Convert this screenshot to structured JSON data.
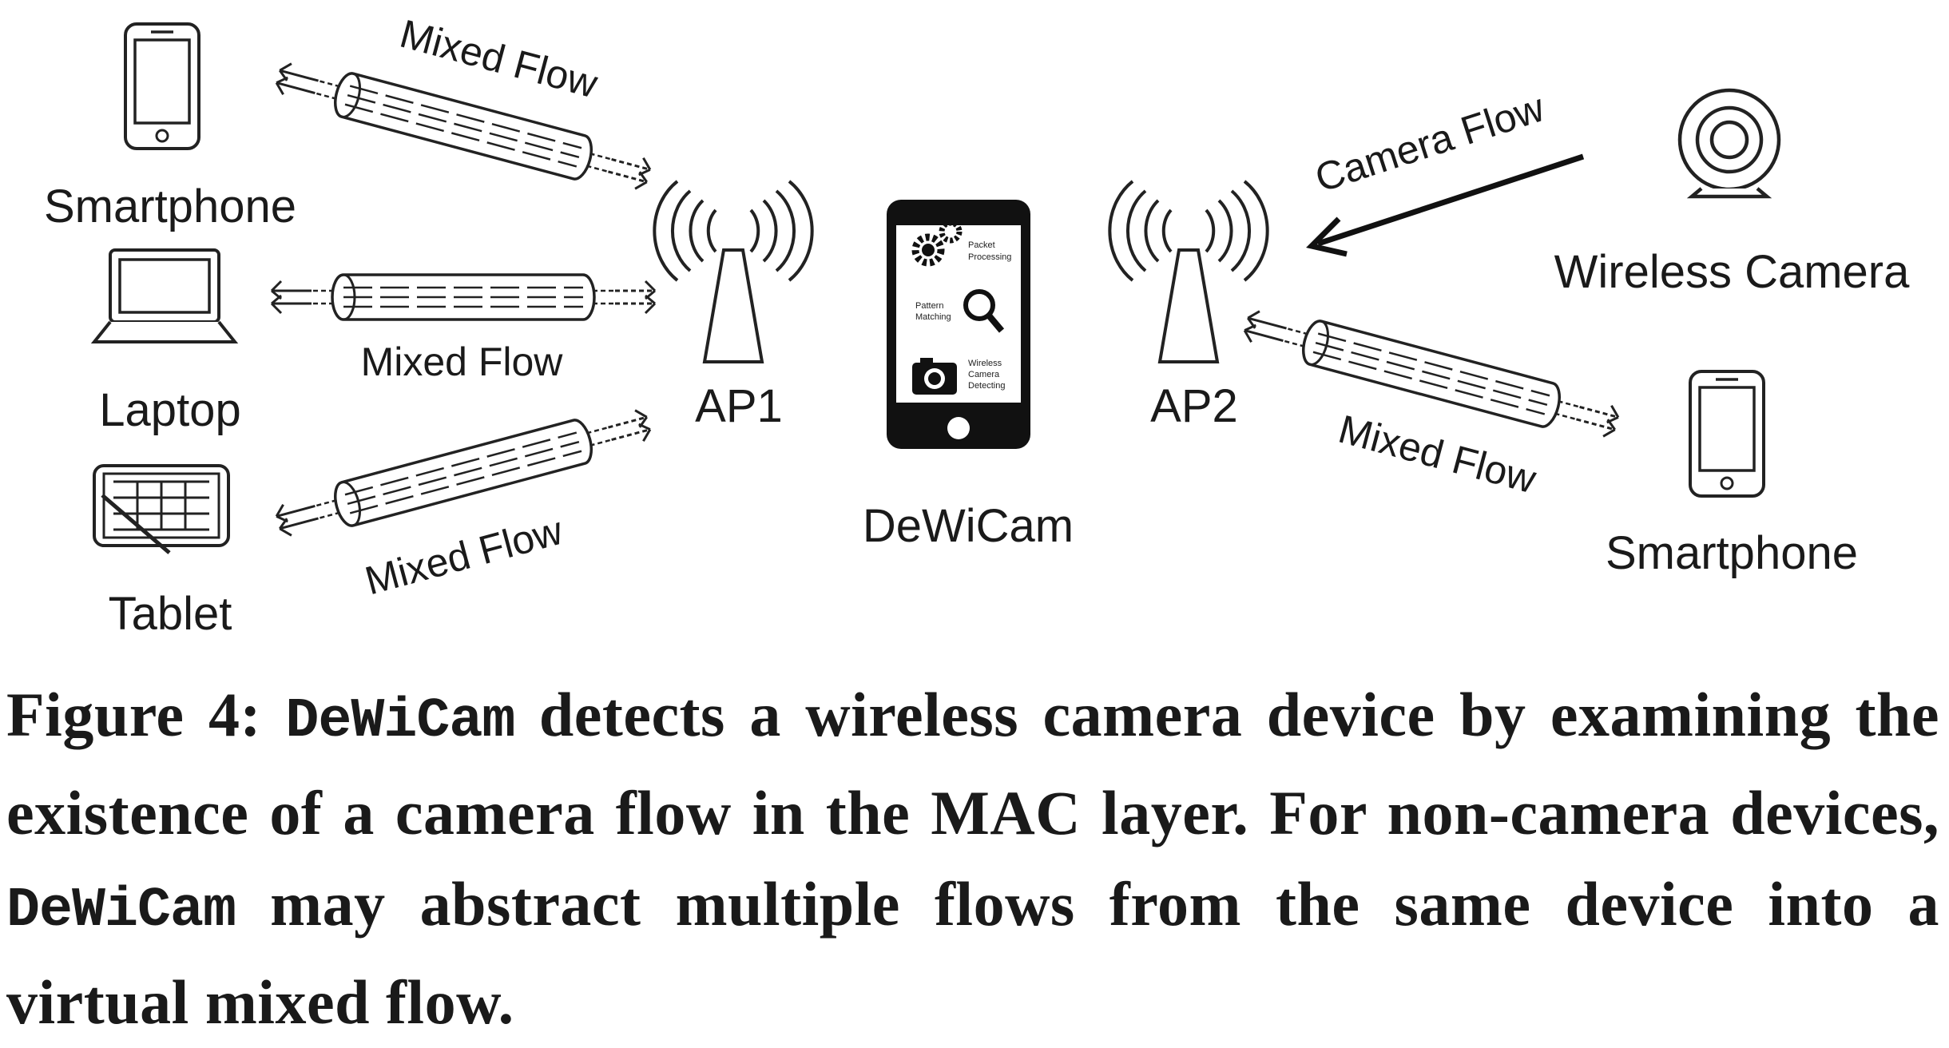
{
  "devices": {
    "smartphone_left": "Smartphone",
    "laptop": "Laptop",
    "tablet": "Tablet",
    "wireless_camera": "Wireless Camera",
    "smartphone_right": "Smartphone"
  },
  "access_points": {
    "ap1": "AP1",
    "ap2": "AP2"
  },
  "dewicam": {
    "label": "DeWiCam",
    "features": [
      [
        "Packet",
        "Processing"
      ],
      [
        "Pattern",
        "Matching"
      ],
      [
        "Wireless",
        "Camera",
        "Detecting"
      ]
    ]
  },
  "flows": {
    "mixed_flow_label": "Mixed Flow",
    "camera_flow_label": "Camera Flow"
  },
  "caption": {
    "prefix": "Figure 4: ",
    "name": "DeWiCam",
    "part1": " detects a wireless camera device by examining the existence of a camera flow in the MAC layer. For non-camera devices, ",
    "part2": " may abstract multiple flows from the same device into a virtual mixed flow."
  }
}
